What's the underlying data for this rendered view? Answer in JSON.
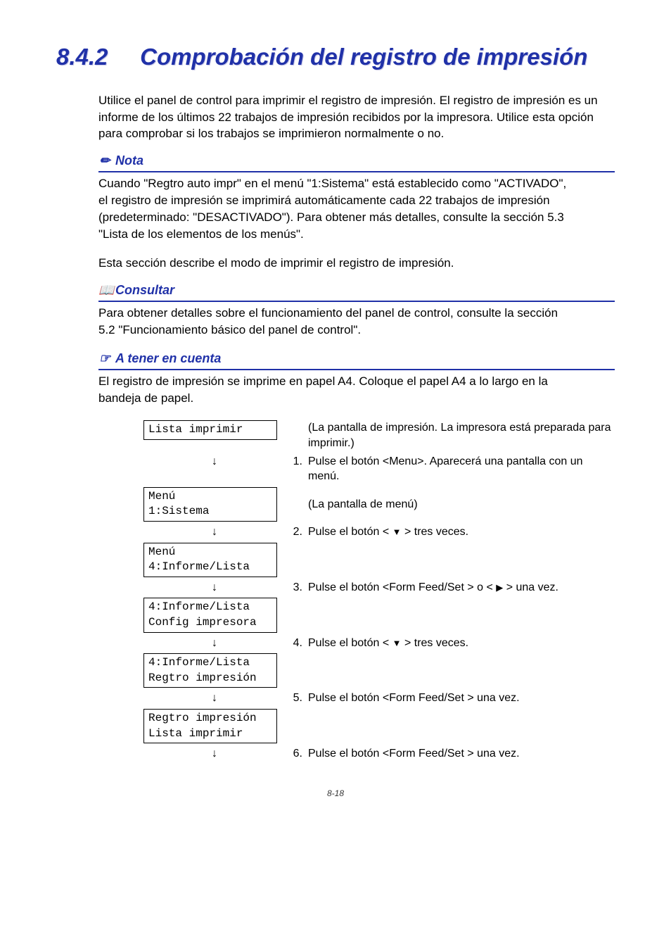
{
  "heading": {
    "number": "8.4.2",
    "title": "Comprobación del registro de impresión"
  },
  "intro": "Utilice el panel de control para imprimir el registro de impresión. El registro de impresión es un informe de los últimos 22 trabajos de impresión recibidos por la impresora. Utilice esta opción para comprobar si los trabajos se imprimieron normalmente o no.",
  "nota": {
    "label": "Nota",
    "body": "Cuando \"Regtro auto impr\" en el menú \"1:Sistema\" está establecido como \"ACTIVADO\", el registro de impresión se imprimirá automáticamente cada 22 trabajos de impresión (predeterminado: \"DESACTIVADO\"). Para obtener más detalles, consulte la sección 5.3 \"Lista de los elementos de los menús\"."
  },
  "mid_text": "Esta sección describe el modo de imprimir el registro de impresión.",
  "consultar": {
    "label": "Consultar",
    "body": "Para obtener detalles sobre el funcionamiento del panel de control, consulte la sección 5.2 \"Funcionamiento básico del panel de control\"."
  },
  "atener": {
    "label": "A tener en cuenta",
    "body": "El registro de impresión se imprime en papel A4. Coloque el papel A4 a lo largo en la bandeja de papel."
  },
  "steps": {
    "lcd0": "Lista imprimir",
    "desc0": "(La pantalla de impresión. La impresora está preparada para imprimir.)",
    "n1": "1.",
    "d1": "Pulse el botón <Menu>. Aparecerá una pantalla con un menú.",
    "lcd1": "Menú\n1:Sistema",
    "d1b": "(La pantalla de menú)",
    "n2": "2.",
    "d2a": "Pulse el botón < ",
    "d2b": " > tres veces.",
    "lcd2": "Menú\n4:Informe/Lista",
    "n3": "3.",
    "d3a": "Pulse el botón <Form Feed/Set > o < ",
    "d3b": " > una vez.",
    "lcd3": "4:Informe/Lista\nConfig impresora",
    "n4": "4.",
    "d4a": "Pulse el botón < ",
    "d4b": " > tres veces.",
    "lcd4": "4:Informe/Lista\nRegtro impresión",
    "n5": "5.",
    "d5": "Pulse el botón <Form Feed/Set > una vez.",
    "lcd5": "Regtro impresión\nLista imprimir",
    "n6": "6.",
    "d6": "Pulse el botón <Form Feed/Set > una vez."
  },
  "page_number": "8-18",
  "icons": {
    "nota": "✏",
    "consultar": "📖",
    "atener": "☞"
  }
}
